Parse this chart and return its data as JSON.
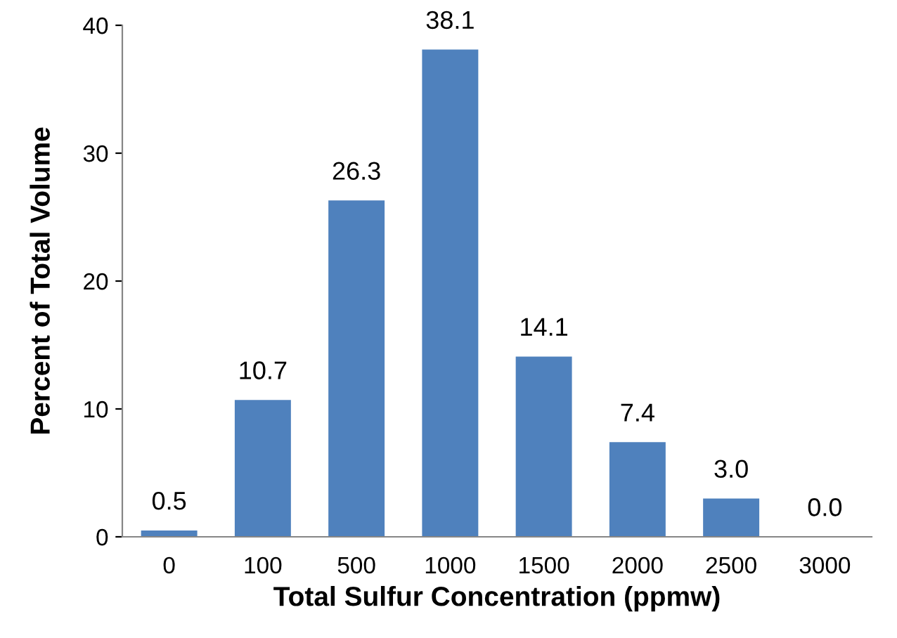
{
  "chart_data": {
    "type": "bar",
    "xlabel": "Total Sulfur Concentration (ppmw)",
    "ylabel": "Percent of Total Volume",
    "categories": [
      "0",
      "100",
      "500",
      "1000",
      "1500",
      "2000",
      "2500",
      "3000"
    ],
    "values": [
      0.5,
      10.7,
      26.3,
      38.1,
      14.1,
      7.4,
      3.0,
      0.0
    ],
    "value_labels": [
      "0.5",
      "10.7",
      "26.3",
      "38.1",
      "14.1",
      "7.4",
      "3.0",
      "0.0"
    ],
    "color": "#4f81bd",
    "ylim": [
      0,
      40
    ],
    "yticks": [
      0,
      10,
      20,
      30,
      40
    ],
    "grid": false,
    "legend": false
  }
}
